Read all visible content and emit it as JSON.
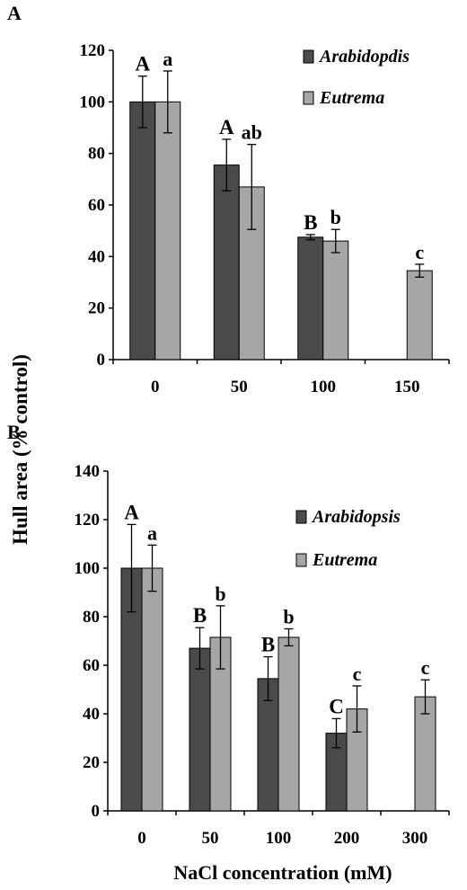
{
  "figure": {
    "ylabel": "Hull area (% control)",
    "xlabel": "NaCl concentration (mM)"
  },
  "colors": {
    "arabidopsis": "#4a4a4a",
    "eutrema": "#a6a6a6",
    "axis": "#000000"
  },
  "chart_data": [
    {
      "panel_label": "A",
      "type": "bar",
      "categories": [
        "0",
        "50",
        "100",
        "150"
      ],
      "ylim": [
        0,
        120
      ],
      "yticks": [
        0,
        20,
        40,
        60,
        80,
        100,
        120
      ],
      "legend_position": "top-right",
      "grid": false,
      "series": [
        {
          "name": "Arabidopdis",
          "values": [
            100,
            75.5,
            47.5,
            null
          ],
          "errors": [
            10,
            10,
            1,
            null
          ],
          "letters": [
            "A",
            "A",
            "B",
            null
          ]
        },
        {
          "name": "Eutrema",
          "values": [
            100,
            67,
            46,
            34.5
          ],
          "errors": [
            12,
            16.5,
            4.5,
            2.5
          ],
          "letters": [
            "a",
            "ab",
            "b",
            "c"
          ]
        }
      ]
    },
    {
      "panel_label": "B",
      "type": "bar",
      "categories": [
        "0",
        "50",
        "100",
        "200",
        "300"
      ],
      "ylim": [
        0,
        140
      ],
      "yticks": [
        0,
        20,
        40,
        60,
        80,
        100,
        120,
        140
      ],
      "legend_position": "top-right",
      "grid": false,
      "series": [
        {
          "name": "Arabidopsis",
          "values": [
            100,
            67,
            54.5,
            32,
            null
          ],
          "errors": [
            18,
            8.5,
            9,
            6,
            null
          ],
          "letters": [
            "A",
            "B",
            "B",
            "C",
            null
          ]
        },
        {
          "name": "Eutrema",
          "values": [
            100,
            71.5,
            71.5,
            42,
            47
          ],
          "errors": [
            9.5,
            13,
            3.5,
            9.5,
            7
          ],
          "letters": [
            "a",
            "b",
            "b",
            "c",
            "c"
          ]
        }
      ]
    }
  ]
}
